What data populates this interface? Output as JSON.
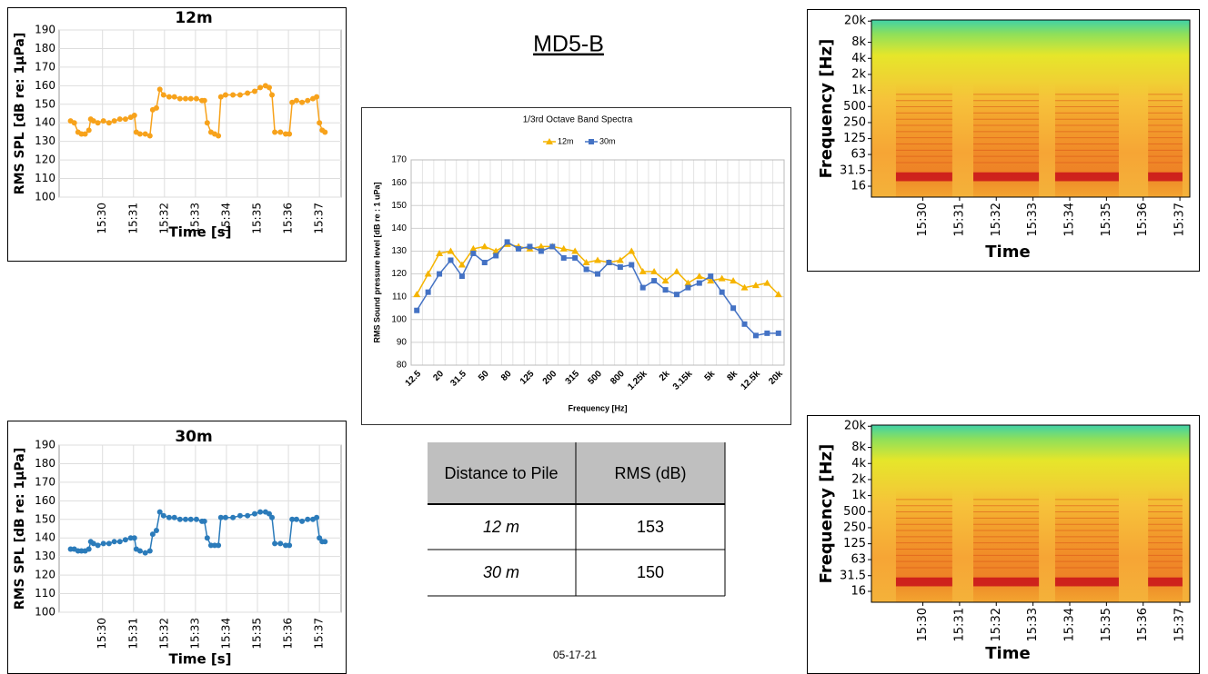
{
  "title": "MD5-B",
  "date": "05-17-21",
  "table": {
    "header": [
      "Distance to Pile",
      "RMS (dB)"
    ],
    "rows": [
      [
        "12 m",
        153
      ],
      [
        "30 m",
        150
      ]
    ]
  },
  "chart_data": [
    {
      "type": "line",
      "title": "12m",
      "y_label": "RMS SPL [dB re: 1µPa]",
      "x_label": "Time [s]",
      "color": "#f7a21b",
      "grid": true,
      "xlim": [
        928.6,
        937.7
      ],
      "ylim": [
        100,
        190
      ],
      "xticks": [
        {
          "value": 930,
          "label": "15:30"
        },
        {
          "value": 931,
          "label": "15:31"
        },
        {
          "value": 932,
          "label": "15:32"
        },
        {
          "value": 933,
          "label": "15:33"
        },
        {
          "value": 934,
          "label": "15:34"
        },
        {
          "value": 935,
          "label": "15:35"
        },
        {
          "value": 936,
          "label": "15:36"
        },
        {
          "value": 937,
          "label": "15:37"
        }
      ],
      "yticks": [
        100,
        110,
        120,
        130,
        140,
        150,
        160,
        170,
        180,
        190
      ],
      "x": [
        928.97,
        929.09,
        929.21,
        929.32,
        929.44,
        929.56,
        929.62,
        929.71,
        929.85,
        930.03,
        930.21,
        930.38,
        930.56,
        930.74,
        930.91,
        931.03,
        931.09,
        931.21,
        931.38,
        931.53,
        931.62,
        931.74,
        931.85,
        931.97,
        932.15,
        932.32,
        932.5,
        932.68,
        932.85,
        933.03,
        933.21,
        933.29,
        933.38,
        933.5,
        933.62,
        933.74,
        933.82,
        933.97,
        934.21,
        934.44,
        934.68,
        934.91,
        935.09,
        935.26,
        935.38,
        935.47,
        935.56,
        935.74,
        935.91,
        936.03,
        936.12,
        936.26,
        936.44,
        936.62,
        936.79,
        936.91,
        937,
        937.09,
        937.18
      ],
      "values": [
        141,
        140,
        135,
        134,
        134,
        136,
        142,
        141,
        140,
        141,
        140,
        141,
        142,
        142,
        143,
        144,
        135,
        134,
        134,
        133,
        147,
        148,
        158,
        155,
        154,
        154,
        153,
        153,
        153,
        153,
        152,
        152,
        140,
        135,
        134,
        133,
        154,
        155,
        155,
        155,
        156,
        157,
        159,
        160,
        159,
        155,
        135,
        135,
        134,
        134,
        151,
        152,
        151,
        152,
        153,
        154,
        140,
        136,
        135
      ]
    },
    {
      "type": "line",
      "title": "30m",
      "y_label": "RMS SPL [dB re: 1µPa]",
      "x_label": "Time [s]",
      "color": "#2b7bba",
      "grid": true,
      "xlim": [
        928.6,
        937.7
      ],
      "ylim": [
        100,
        190
      ],
      "xticks": [
        {
          "value": 930,
          "label": "15:30"
        },
        {
          "value": 931,
          "label": "15:31"
        },
        {
          "value": 932,
          "label": "15:32"
        },
        {
          "value": 933,
          "label": "15:33"
        },
        {
          "value": 934,
          "label": "15:34"
        },
        {
          "value": 935,
          "label": "15:35"
        },
        {
          "value": 936,
          "label": "15:36"
        },
        {
          "value": 937,
          "label": "15:37"
        }
      ],
      "yticks": [
        100,
        110,
        120,
        130,
        140,
        150,
        160,
        170,
        180,
        190
      ],
      "x": [
        928.97,
        929.09,
        929.21,
        929.32,
        929.44,
        929.56,
        929.62,
        929.71,
        929.85,
        930.03,
        930.21,
        930.38,
        930.56,
        930.74,
        930.91,
        931.03,
        931.09,
        931.21,
        931.38,
        931.53,
        931.62,
        931.74,
        931.85,
        931.97,
        932.15,
        932.32,
        932.5,
        932.68,
        932.85,
        933.03,
        933.21,
        933.29,
        933.38,
        933.5,
        933.62,
        933.74,
        933.82,
        933.97,
        934.21,
        934.44,
        934.68,
        934.91,
        935.09,
        935.26,
        935.38,
        935.47,
        935.56,
        935.74,
        935.91,
        936.03,
        936.12,
        936.26,
        936.44,
        936.62,
        936.79,
        936.91,
        937,
        937.09,
        937.18
      ],
      "values": [
        134,
        134,
        133,
        133,
        133,
        134,
        138,
        137,
        136,
        137,
        137,
        138,
        138,
        139,
        140,
        140,
        134,
        133,
        132,
        133,
        142,
        144,
        154,
        152,
        151,
        151,
        150,
        150,
        150,
        150,
        149,
        149,
        140,
        136,
        136,
        136,
        151,
        151,
        151,
        152,
        152,
        153,
        154,
        154,
        153,
        151,
        137,
        137,
        136,
        136,
        150,
        150,
        149,
        150,
        150,
        151,
        140,
        138,
        138
      ]
    },
    {
      "type": "line",
      "title": "1/3rd Octave Band Spectra",
      "y_label": "RMS Sound pressure level [dB  re : 1 uPa]",
      "x_label": "Frequency [Hz]",
      "grid": true,
      "legend": "top",
      "ylim": [
        80,
        170
      ],
      "yticks": [
        80,
        90,
        100,
        110,
        120,
        130,
        140,
        150,
        160,
        170
      ],
      "categories": [
        "12.5",
        null,
        "20",
        null,
        "31.5",
        null,
        "50",
        null,
        "80",
        null,
        "125",
        null,
        "200",
        null,
        "315",
        null,
        "500",
        null,
        "800",
        null,
        "1.25k",
        null,
        "2k",
        null,
        "3.15k",
        null,
        "5k",
        null,
        "8k",
        null,
        "12.5k",
        null,
        "20k"
      ],
      "series": [
        {
          "name": "12m",
          "color": "#f5b400",
          "marker": "triangle",
          "values": [
            111,
            120,
            129,
            130,
            124,
            131,
            132,
            130,
            133,
            132,
            131,
            132,
            132,
            131,
            130,
            125,
            126,
            125,
            126,
            130,
            121,
            121,
            117,
            121,
            116,
            119,
            117,
            118,
            117,
            114,
            115,
            116,
            111
          ]
        },
        {
          "name": "30m",
          "color": "#4472c4",
          "marker": "square",
          "values": [
            104,
            112,
            120,
            126,
            119,
            129,
            125,
            128,
            134,
            131,
            132,
            130,
            132,
            127,
            127,
            122,
            120,
            125,
            123,
            124,
            114,
            117,
            113,
            111,
            114,
            116,
            119,
            112,
            105,
            98,
            93,
            94,
            94
          ]
        }
      ]
    },
    {
      "type": "spectrogram",
      "y_label": "Frequency [Hz]",
      "x_label": "Time",
      "log_scale": true,
      "xlim": [
        928.6,
        937.27
      ],
      "ylim": [
        10,
        21000
      ],
      "xticks": [
        {
          "value": 930,
          "label": "15:30"
        },
        {
          "value": 931,
          "label": "15:31"
        },
        {
          "value": 932,
          "label": "15:32"
        },
        {
          "value": 933,
          "label": "15:33"
        },
        {
          "value": 934,
          "label": "15:34"
        },
        {
          "value": 935,
          "label": "15:35"
        },
        {
          "value": 936,
          "label": "15:36"
        },
        {
          "value": 937,
          "label": "15:37"
        }
      ],
      "yticks": [
        {
          "value": 16,
          "label": "16"
        },
        {
          "value": 31.5,
          "label": "31.5"
        },
        {
          "value": 63,
          "label": "63"
        },
        {
          "value": 125,
          "label": "125"
        },
        {
          "value": 250,
          "label": "250"
        },
        {
          "value": 500,
          "label": "500"
        },
        {
          "value": 1000,
          "label": "1k"
        },
        {
          "value": 2000,
          "label": "2k"
        },
        {
          "value": 4000,
          "label": "4k"
        },
        {
          "value": 8000,
          "label": "8k"
        },
        {
          "value": 20000,
          "label": "20k"
        }
      ]
    },
    {
      "type": "spectrogram",
      "y_label": "Frequency [Hz]",
      "x_label": "Time",
      "log_scale": true,
      "xlim": [
        928.6,
        937.27
      ],
      "ylim": [
        10,
        21000
      ],
      "xticks": [
        {
          "value": 930,
          "label": "15:30"
        },
        {
          "value": 931,
          "label": "15:31"
        },
        {
          "value": 932,
          "label": "15:32"
        },
        {
          "value": 933,
          "label": "15:33"
        },
        {
          "value": 934,
          "label": "15:34"
        },
        {
          "value": 935,
          "label": "15:35"
        },
        {
          "value": 936,
          "label": "15:36"
        },
        {
          "value": 937,
          "label": "15:37"
        }
      ],
      "yticks": [
        {
          "value": 16,
          "label": "16"
        },
        {
          "value": 31.5,
          "label": "31.5"
        },
        {
          "value": 63,
          "label": "63"
        },
        {
          "value": 125,
          "label": "125"
        },
        {
          "value": 250,
          "label": "250"
        },
        {
          "value": 500,
          "label": "500"
        },
        {
          "value": 1000,
          "label": "1k"
        },
        {
          "value": 2000,
          "label": "2k"
        },
        {
          "value": 4000,
          "label": "4k"
        },
        {
          "value": 8000,
          "label": "8k"
        },
        {
          "value": 20000,
          "label": "20k"
        }
      ]
    }
  ]
}
